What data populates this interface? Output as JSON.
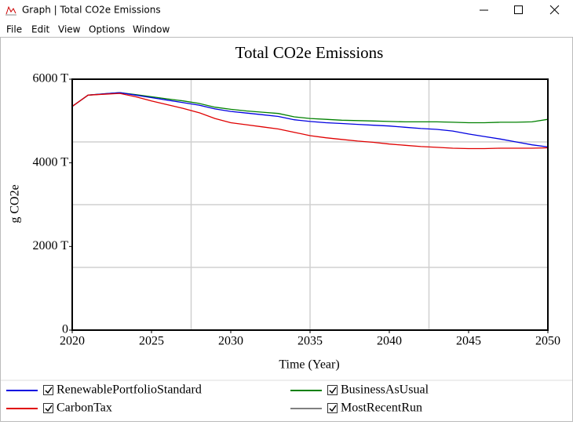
{
  "window": {
    "title": "Graph | Total CO2e Emissions",
    "menu": [
      "File",
      "Edit",
      "View",
      "Options",
      "Window"
    ]
  },
  "chart_data": {
    "type": "line",
    "title": "Total CO2e Emissions",
    "x_label": "Time (Year)",
    "y_label": "g CO2e",
    "x": [
      2020,
      2021,
      2022,
      2023,
      2024,
      2025,
      2026,
      2027,
      2028,
      2029,
      2030,
      2031,
      2032,
      2033,
      2034,
      2035,
      2036,
      2037,
      2038,
      2039,
      2040,
      2041,
      2042,
      2043,
      2044,
      2045,
      2046,
      2047,
      2048,
      2049,
      2050
    ],
    "series": [
      {
        "name": "RenewablePortfolioStandard",
        "color": "#0000e0",
        "values": [
          5350,
          5620,
          5650,
          5680,
          5620,
          5560,
          5500,
          5440,
          5380,
          5290,
          5230,
          5190,
          5150,
          5110,
          5030,
          4990,
          4960,
          4940,
          4920,
          4900,
          4880,
          4850,
          4820,
          4800,
          4760,
          4690,
          4630,
          4570,
          4500,
          4430,
          4380
        ]
      },
      {
        "name": "BusinessAsUsual",
        "color": "#008000",
        "values": [
          5350,
          5620,
          5650,
          5680,
          5630,
          5580,
          5530,
          5480,
          5420,
          5330,
          5280,
          5240,
          5210,
          5180,
          5100,
          5060,
          5040,
          5020,
          5010,
          5000,
          4990,
          4980,
          4980,
          4980,
          4970,
          4960,
          4960,
          4970,
          4970,
          4980,
          5040
        ]
      },
      {
        "name": "CarbonTax",
        "color": "#e00000",
        "values": [
          5350,
          5620,
          5640,
          5660,
          5580,
          5480,
          5390,
          5300,
          5200,
          5060,
          4960,
          4910,
          4860,
          4810,
          4730,
          4650,
          4600,
          4560,
          4520,
          4490,
          4450,
          4420,
          4390,
          4370,
          4350,
          4340,
          4340,
          4350,
          4350,
          4350,
          4360
        ]
      },
      {
        "name": "MostRecentRun",
        "color": "#808080",
        "values": [
          null,
          null,
          null,
          null,
          null,
          null,
          null,
          null,
          null,
          null,
          null,
          null,
          null,
          null,
          null,
          null,
          null,
          null,
          null,
          null,
          null,
          null,
          null,
          null,
          null,
          null,
          null,
          null,
          null,
          null,
          null
        ]
      }
    ],
    "xlim": [
      2020,
      2050
    ],
    "xticks": [
      2020,
      2025,
      2030,
      2035,
      2040,
      2045,
      2050
    ],
    "ylim": [
      0,
      6000
    ],
    "yticks": [
      0,
      {
        "value": 2000,
        "label": "2000 T"
      },
      {
        "value": 4000,
        "label": "4000 T"
      },
      {
        "value": 6000,
        "label": "6000 T"
      }
    ],
    "xgrid": [
      2027.5,
      2035,
      2042.5
    ],
    "ygrid": [
      1500,
      3000,
      4500
    ]
  }
}
